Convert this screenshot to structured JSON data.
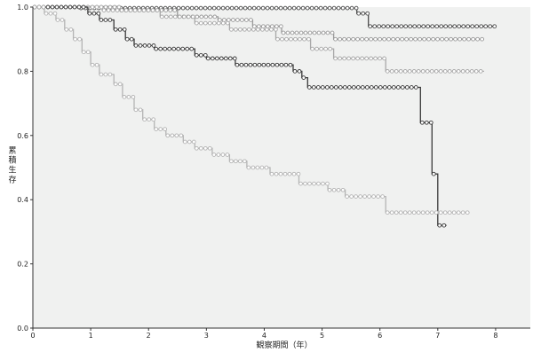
{
  "chart_data": {
    "type": "line",
    "subtype": "kaplan-meier step plot",
    "title": "",
    "xlabel": "観察期間（年）",
    "ylabel": "累積生存",
    "xlim": [
      0,
      8.6
    ],
    "ylim": [
      0,
      1.0
    ],
    "x_ticks": [
      "0",
      "1",
      "2",
      "3",
      "4",
      "5",
      "6",
      "7",
      "8"
    ],
    "y_ticks": [
      "0.0",
      "0.2",
      "0.4",
      "0.6",
      "0.8",
      "1.0"
    ],
    "grid": false,
    "legend": "none",
    "background_color": "#f0f1f0",
    "series": [
      {
        "color": "#4a4a4a",
        "points": [
          [
            0,
            1.0
          ],
          [
            0.8,
            1.0
          ],
          [
            0.8,
            0.997
          ],
          [
            5.6,
            0.997
          ],
          [
            5.6,
            0.98
          ],
          [
            5.8,
            0.98
          ],
          [
            5.8,
            0.94
          ],
          [
            8.0,
            0.94
          ]
        ]
      },
      {
        "color": "#9a9a9a",
        "points": [
          [
            0,
            1.0
          ],
          [
            1.5,
            1.0
          ],
          [
            1.5,
            0.99
          ],
          [
            2.5,
            0.99
          ],
          [
            2.5,
            0.97
          ],
          [
            3.2,
            0.97
          ],
          [
            3.2,
            0.96
          ],
          [
            3.8,
            0.96
          ],
          [
            3.8,
            0.94
          ],
          [
            4.3,
            0.94
          ],
          [
            4.3,
            0.92
          ],
          [
            5.2,
            0.92
          ],
          [
            5.2,
            0.9
          ],
          [
            7.8,
            0.9
          ]
        ]
      },
      {
        "color": "#a8a8a8",
        "points": [
          [
            0,
            1.0
          ],
          [
            1.2,
            1.0
          ],
          [
            1.2,
            0.99
          ],
          [
            2.2,
            0.99
          ],
          [
            2.2,
            0.97
          ],
          [
            2.8,
            0.97
          ],
          [
            2.8,
            0.95
          ],
          [
            3.4,
            0.95
          ],
          [
            3.4,
            0.93
          ],
          [
            4.2,
            0.93
          ],
          [
            4.2,
            0.9
          ],
          [
            4.8,
            0.9
          ],
          [
            4.8,
            0.87
          ],
          [
            5.2,
            0.87
          ],
          [
            5.2,
            0.84
          ],
          [
            6.1,
            0.84
          ],
          [
            6.1,
            0.8
          ],
          [
            7.8,
            0.8
          ]
        ]
      },
      {
        "color": "#3a3a3a",
        "points": [
          [
            0,
            1.0
          ],
          [
            0.95,
            1.0
          ],
          [
            0.95,
            0.98
          ],
          [
            1.15,
            0.98
          ],
          [
            1.15,
            0.96
          ],
          [
            1.4,
            0.96
          ],
          [
            1.4,
            0.93
          ],
          [
            1.6,
            0.93
          ],
          [
            1.6,
            0.9
          ],
          [
            1.75,
            0.9
          ],
          [
            1.75,
            0.88
          ],
          [
            2.1,
            0.88
          ],
          [
            2.1,
            0.87
          ],
          [
            2.8,
            0.87
          ],
          [
            2.8,
            0.85
          ],
          [
            3.0,
            0.85
          ],
          [
            3.0,
            0.84
          ],
          [
            3.5,
            0.84
          ],
          [
            3.5,
            0.82
          ],
          [
            4.5,
            0.82
          ],
          [
            4.5,
            0.8
          ],
          [
            4.65,
            0.8
          ],
          [
            4.65,
            0.78
          ],
          [
            4.75,
            0.78
          ],
          [
            4.75,
            0.75
          ],
          [
            6.7,
            0.75
          ],
          [
            6.7,
            0.64
          ],
          [
            6.9,
            0.64
          ],
          [
            6.9,
            0.48
          ],
          [
            7.0,
            0.48
          ],
          [
            7.0,
            0.32
          ],
          [
            7.15,
            0.32
          ]
        ]
      },
      {
        "color": "#b4b4b4",
        "points": [
          [
            0,
            1.0
          ],
          [
            0.2,
            1.0
          ],
          [
            0.2,
            0.98
          ],
          [
            0.4,
            0.98
          ],
          [
            0.4,
            0.96
          ],
          [
            0.55,
            0.96
          ],
          [
            0.55,
            0.93
          ],
          [
            0.7,
            0.93
          ],
          [
            0.7,
            0.9
          ],
          [
            0.85,
            0.9
          ],
          [
            0.85,
            0.86
          ],
          [
            1.0,
            0.86
          ],
          [
            1.0,
            0.82
          ],
          [
            1.15,
            0.82
          ],
          [
            1.15,
            0.79
          ],
          [
            1.4,
            0.79
          ],
          [
            1.4,
            0.76
          ],
          [
            1.55,
            0.76
          ],
          [
            1.55,
            0.72
          ],
          [
            1.75,
            0.72
          ],
          [
            1.75,
            0.68
          ],
          [
            1.9,
            0.68
          ],
          [
            1.9,
            0.65
          ],
          [
            2.1,
            0.65
          ],
          [
            2.1,
            0.62
          ],
          [
            2.3,
            0.62
          ],
          [
            2.3,
            0.6
          ],
          [
            2.6,
            0.6
          ],
          [
            2.6,
            0.58
          ],
          [
            2.8,
            0.58
          ],
          [
            2.8,
            0.56
          ],
          [
            3.1,
            0.56
          ],
          [
            3.1,
            0.54
          ],
          [
            3.4,
            0.54
          ],
          [
            3.4,
            0.52
          ],
          [
            3.7,
            0.52
          ],
          [
            3.7,
            0.5
          ],
          [
            4.1,
            0.5
          ],
          [
            4.1,
            0.48
          ],
          [
            4.6,
            0.48
          ],
          [
            4.6,
            0.45
          ],
          [
            5.1,
            0.45
          ],
          [
            5.1,
            0.43
          ],
          [
            5.4,
            0.43
          ],
          [
            5.4,
            0.41
          ],
          [
            6.1,
            0.41
          ],
          [
            6.1,
            0.36
          ],
          [
            7.55,
            0.36
          ]
        ]
      }
    ]
  }
}
